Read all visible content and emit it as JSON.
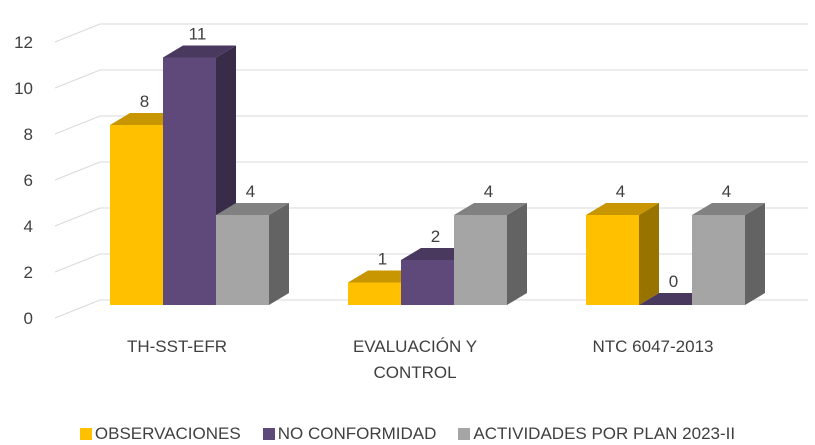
{
  "chart_data": {
    "type": "bar3d",
    "categories": [
      "TH-SST-EFR",
      "EVALUACIÓN Y CONTROL",
      "NTC 6047-2013"
    ],
    "series": [
      {
        "name": "OBSERVACIONES",
        "color": "#ffc000",
        "values": [
          8,
          1,
          4
        ]
      },
      {
        "name": "NO CONFORMIDAD",
        "color": "#5f497a",
        "values": [
          11,
          2,
          0
        ]
      },
      {
        "name": "ACTIVIDADES POR PLAN 2023-II",
        "color": "#a5a5a5",
        "values": [
          4,
          4,
          4
        ]
      }
    ],
    "ylim": [
      0,
      12
    ],
    "yticks": [
      0,
      2,
      4,
      6,
      8,
      10,
      12
    ],
    "grid": true,
    "legend": "bottom"
  }
}
